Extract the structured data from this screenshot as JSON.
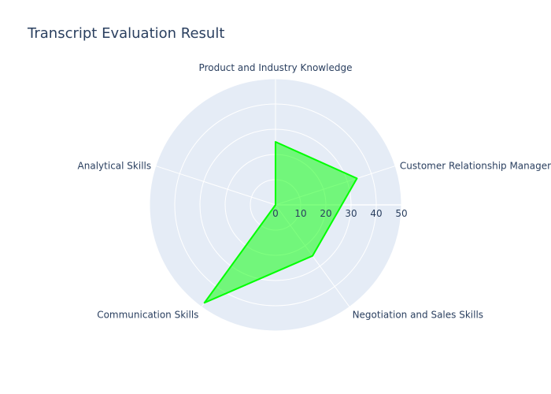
{
  "chart_data": {
    "type": "radar",
    "title": "Transcript Evaluation Result",
    "categories": [
      "Product and Industry Knowledge",
      "Customer Relationship Management",
      "Negotiation and Sales Skills",
      "Communication Skills",
      "Analytical Skills"
    ],
    "values": [
      25,
      34,
      25,
      48,
      0
    ],
    "radial_range": [
      0,
      50
    ],
    "radial_ticks": [
      0,
      10,
      20,
      30,
      40,
      50
    ],
    "fill_color": "#00ff00",
    "line_color": "#00ff00",
    "polar_bgcolor": "#e5ecf6",
    "grid_color": "#ffffff"
  }
}
